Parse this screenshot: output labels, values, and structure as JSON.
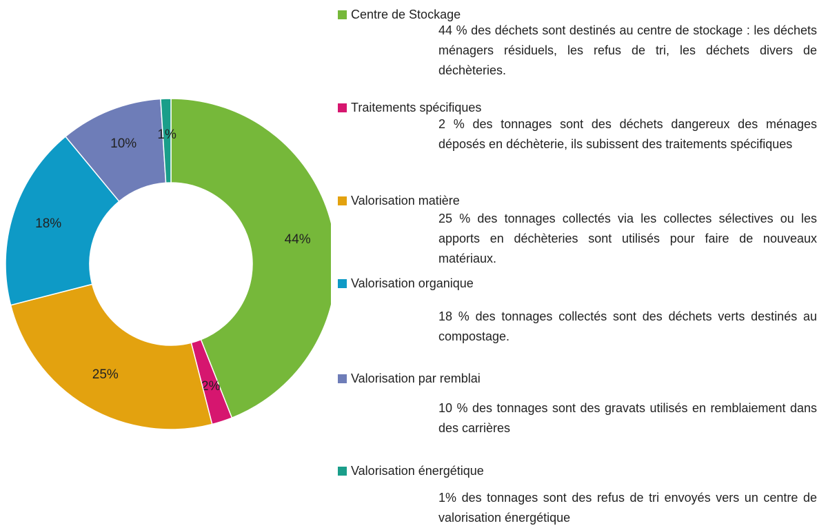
{
  "chart_data": {
    "type": "donut",
    "categories": [
      "Centre de Stockage",
      "Traitements spécifiques",
      "Valorisation matière",
      "Valorisation organique",
      "Valorisation par remblai",
      "Valorisation énergétique"
    ],
    "values": [
      44,
      2,
      25,
      18,
      10,
      1
    ],
    "value_labels": [
      "44%",
      "2%",
      "25%",
      "18%",
      "10%",
      "1%"
    ],
    "colors": [
      "#76b83a",
      "#d6166f",
      "#e3a20f",
      "#0e9ac6",
      "#6e7db8",
      "#1a9e8a"
    ],
    "descriptions": [
      "44 % des déchets sont destinés au centre de stockage : les déchets ménagers résiduels, les refus de tri, les déchets divers de déchèteries.",
      "2 % des tonnages sont des déchets dangereux des ménages déposés en déchèterie, ils subissent des traitements spécifiques",
      "25 % des tonnages collectés via les collectes sélectives ou les apports en déchèteries sont utilisés pour faire de nouveaux matériaux.",
      "18 % des tonnages collectés sont des déchets verts destinés au compostage.",
      "10 % des tonnages sont des gravats utilisés en remblaiement dans des carrières",
      "1% des tonnages sont des refus de tri envoyés vers un centre de valorisation énergétique"
    ]
  }
}
